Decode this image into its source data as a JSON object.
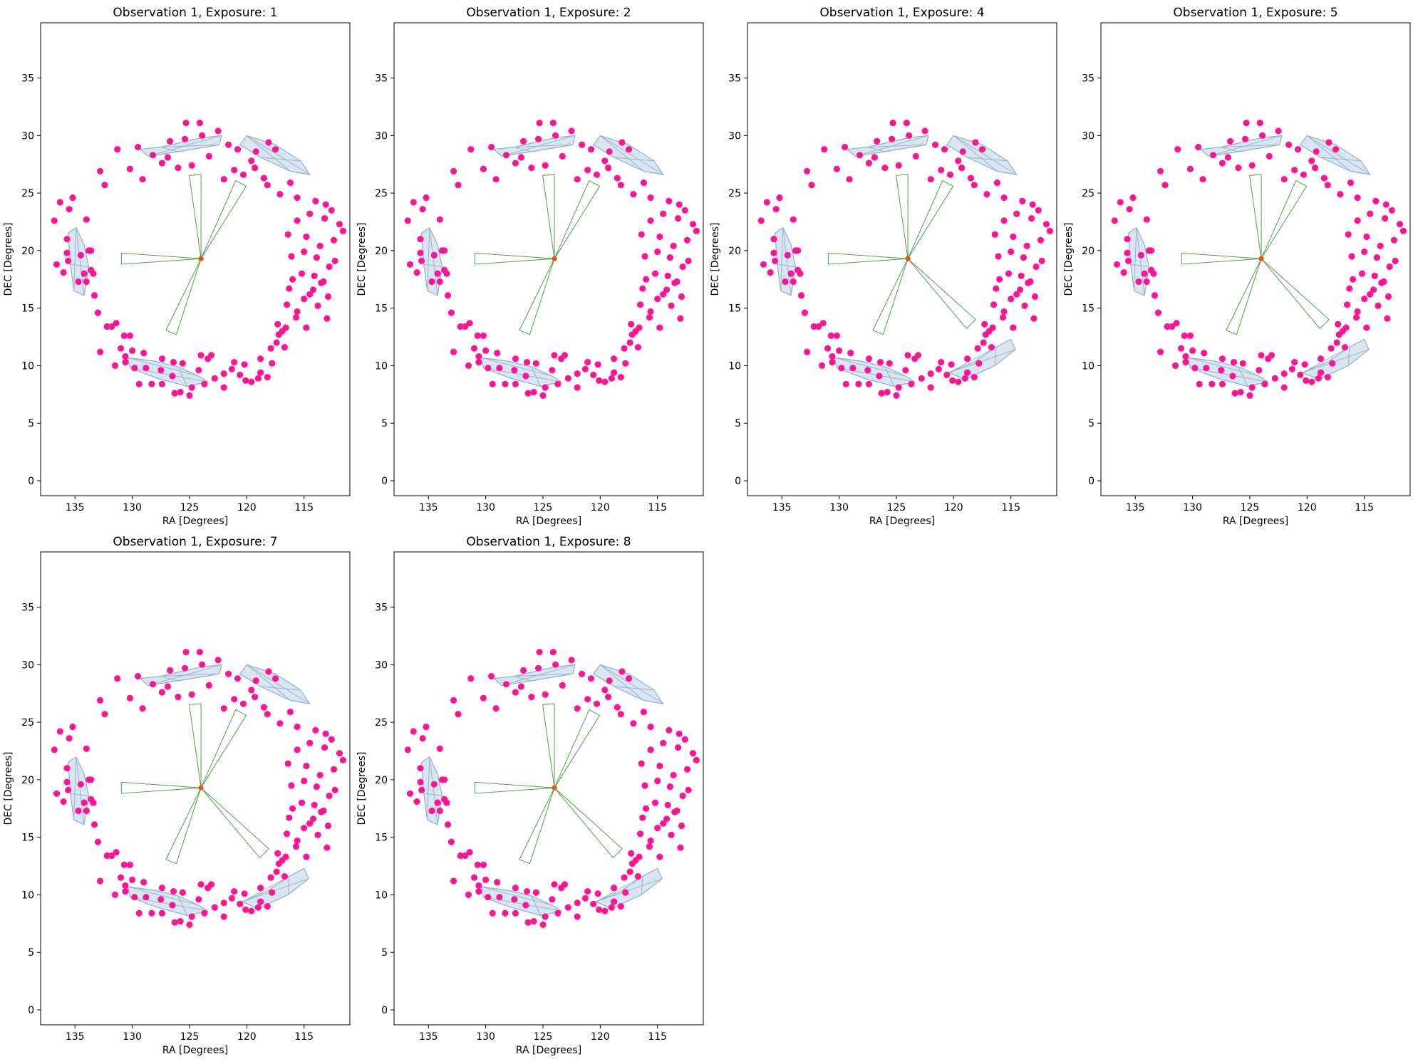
{
  "chart_data": [
    {
      "type": "scatter",
      "title": "Observation 1, Exposure: 1",
      "xlabel": "RA [Degrees]",
      "ylabel": "DEC [Degrees]",
      "xlim": [
        138,
        111
      ],
      "ylim": [
        -1.3,
        39.8
      ],
      "x_ticks": [
        135,
        130,
        125,
        120,
        115
      ],
      "y_ticks": [
        0,
        5,
        10,
        15,
        20,
        25,
        30,
        35
      ],
      "center": [
        124,
        19.3
      ],
      "footprint_angles": [
        94,
        62,
        180,
        248
      ],
      "extra_blob": false
    },
    {
      "type": "scatter",
      "title": "Observation 1, Exposure: 2",
      "xlabel": "RA [Degrees]",
      "ylabel": "DEC [Degrees]",
      "xlim": [
        138,
        111
      ],
      "ylim": [
        -1.3,
        39.8
      ],
      "x_ticks": [
        135,
        130,
        125,
        120,
        115
      ],
      "y_ticks": [
        0,
        5,
        10,
        15,
        20,
        25,
        30,
        35
      ],
      "center": [
        124,
        19.3
      ],
      "footprint_angles": [
        94,
        62,
        180,
        248
      ],
      "extra_blob": false
    },
    {
      "type": "scatter",
      "title": "Observation 1, Exposure: 4",
      "xlabel": "RA [Degrees]",
      "ylabel": "DEC [Degrees]",
      "xlim": [
        138,
        111
      ],
      "ylim": [
        -1.3,
        39.8
      ],
      "x_ticks": [
        135,
        130,
        125,
        120,
        115
      ],
      "y_ticks": [
        0,
        5,
        10,
        15,
        20,
        25,
        30,
        35
      ],
      "center": [
        124,
        19.3
      ],
      "footprint_angles": [
        94,
        62,
        180,
        248,
        314
      ],
      "extra_blob": true
    },
    {
      "type": "scatter",
      "title": "Observation 1, Exposure: 5",
      "xlabel": "RA [Degrees]",
      "ylabel": "DEC [Degrees]",
      "xlim": [
        138,
        111
      ],
      "ylim": [
        -1.3,
        39.8
      ],
      "x_ticks": [
        135,
        130,
        125,
        120,
        115
      ],
      "y_ticks": [
        0,
        5,
        10,
        15,
        20,
        25,
        30,
        35
      ],
      "center": [
        124,
        19.3
      ],
      "footprint_angles": [
        94,
        62,
        180,
        248,
        314
      ],
      "extra_blob": true
    },
    {
      "type": "scatter",
      "title": "Observation 1, Exposure: 7",
      "xlabel": "RA [Degrees]",
      "ylabel": "DEC [Degrees]",
      "xlim": [
        138,
        111
      ],
      "ylim": [
        -1.3,
        39.8
      ],
      "x_ticks": [
        135,
        130,
        125,
        120,
        115
      ],
      "y_ticks": [
        0,
        5,
        10,
        15,
        20,
        25,
        30,
        35
      ],
      "center": [
        124,
        19.3
      ],
      "footprint_angles": [
        94,
        62,
        180,
        248,
        314
      ],
      "extra_blob": true
    },
    {
      "type": "scatter",
      "title": "Observation 1, Exposure: 8",
      "xlabel": "RA [Degrees]",
      "ylabel": "DEC [Degrees]",
      "xlim": [
        138,
        111
      ],
      "ylim": [
        -1.3,
        39.8
      ],
      "x_ticks": [
        135,
        130,
        125,
        120,
        115
      ],
      "y_ticks": [
        0,
        5,
        10,
        15,
        20,
        25,
        30,
        35
      ],
      "center": [
        124,
        19.3
      ],
      "footprint_angles": [
        94,
        62,
        180,
        248,
        314
      ],
      "extra_blob": true
    }
  ],
  "points": [
    [
      136.8,
      22.6
    ],
    [
      136.3,
      24.2
    ],
    [
      135.2,
      24.6
    ],
    [
      136.6,
      18.8
    ],
    [
      135.6,
      19.1
    ],
    [
      134.2,
      18.0
    ],
    [
      134.5,
      19.6
    ],
    [
      133.8,
      20.0
    ],
    [
      134.0,
      17.3
    ],
    [
      133.3,
      16.1
    ],
    [
      133.0,
      14.6
    ],
    [
      132.2,
      13.4
    ],
    [
      132.8,
      11.2
    ],
    [
      131.0,
      11.5
    ],
    [
      130.2,
      12.6
    ],
    [
      130.6,
      10.3
    ],
    [
      129.8,
      9.8
    ],
    [
      128.3,
      8.4
    ],
    [
      127.5,
      9.6
    ],
    [
      126.5,
      9.1
    ],
    [
      125.8,
      7.7
    ],
    [
      124.8,
      8.1
    ],
    [
      124.2,
      9.6
    ],
    [
      123.4,
      10.6
    ],
    [
      122.8,
      8.9
    ],
    [
      121.3,
      9.7
    ],
    [
      120.2,
      10.1
    ],
    [
      118.8,
      10.6
    ],
    [
      117.9,
      11.5
    ],
    [
      117.2,
      12.7
    ],
    [
      116.6,
      13.3
    ],
    [
      115.7,
      14.2
    ],
    [
      115.0,
      15.8
    ],
    [
      114.2,
      16.6
    ],
    [
      113.5,
      17.2
    ],
    [
      112.8,
      18.6
    ],
    [
      113.6,
      20.4
    ],
    [
      112.4,
      20.9
    ],
    [
      111.6,
      21.7
    ],
    [
      113.2,
      22.8
    ],
    [
      114.5,
      23.2
    ],
    [
      115.6,
      22.6
    ],
    [
      116.4,
      21.4
    ],
    [
      117.1,
      24.9
    ],
    [
      118.5,
      26.3
    ],
    [
      119.6,
      27.8
    ],
    [
      120.8,
      28.8
    ],
    [
      121.6,
      29.2
    ],
    [
      122.5,
      30.4
    ],
    [
      124.1,
      31.1
    ],
    [
      125.4,
      29.7
    ],
    [
      126.7,
      29.5
    ],
    [
      128.2,
      28.3
    ],
    [
      129.5,
      29.0
    ],
    [
      130.2,
      27.1
    ],
    [
      131.3,
      28.8
    ],
    [
      129.1,
      26.2
    ],
    [
      126.9,
      28.1
    ],
    [
      124.8,
      27.4
    ],
    [
      123.3,
      28.2
    ],
    [
      132.8,
      26.9
    ],
    [
      132.4,
      25.7
    ],
    [
      127.4,
      27.6
    ],
    [
      126.0,
      27.2
    ],
    [
      122.0,
      26.2
    ],
    [
      121.1,
      27.0
    ],
    [
      118.1,
      29.4
    ],
    [
      117.5,
      28.8
    ],
    [
      116.2,
      25.9
    ],
    [
      115.6,
      24.6
    ],
    [
      114.0,
      24.3
    ],
    [
      113.1,
      24.0
    ],
    [
      112.6,
      23.5
    ],
    [
      111.9,
      22.3
    ],
    [
      114.8,
      21.2
    ],
    [
      116.1,
      19.5
    ],
    [
      113.9,
      19.4
    ],
    [
      115.2,
      18.0
    ],
    [
      114.1,
      17.8
    ],
    [
      116.3,
      16.7
    ],
    [
      112.9,
      16.0
    ],
    [
      113.8,
      15.2
    ],
    [
      115.6,
      14.7
    ],
    [
      113.0,
      14.1
    ],
    [
      114.8,
      13.3
    ],
    [
      116.9,
      13.0
    ],
    [
      117.4,
      12.0
    ],
    [
      117.8,
      10.2
    ],
    [
      118.8,
      9.4
    ],
    [
      119.6,
      8.6
    ],
    [
      120.6,
      9.2
    ],
    [
      122.0,
      9.3
    ],
    [
      123.1,
      10.9
    ],
    [
      124.0,
      10.9
    ],
    [
      125.6,
      10.2
    ],
    [
      126.4,
      10.3
    ],
    [
      127.4,
      10.6
    ],
    [
      128.8,
      9.8
    ],
    [
      129.4,
      8.4
    ],
    [
      130.6,
      10.8
    ],
    [
      131.5,
      10.0
    ],
    [
      130.7,
      12.6
    ],
    [
      125.0,
      7.4
    ],
    [
      126.3,
      7.6
    ],
    [
      123.7,
      8.4
    ],
    [
      122.0,
      8.1
    ],
    [
      127.4,
      8.4
    ],
    [
      135.7,
      21.0
    ],
    [
      135.5,
      23.6
    ],
    [
      134.0,
      22.7
    ],
    [
      133.6,
      20.0
    ],
    [
      133.4,
      18.0
    ],
    [
      134.7,
      17.3
    ],
    [
      131.8,
      13.4
    ],
    [
      130.0,
      11.3
    ],
    [
      129.0,
      11.1
    ],
    [
      131.4,
      13.7
    ],
    [
      133.6,
      18.3
    ],
    [
      135.7,
      19.8
    ],
    [
      136.0,
      18.1
    ],
    [
      118.2,
      25.7
    ],
    [
      119.3,
      27.2
    ],
    [
      120.3,
      26.6
    ],
    [
      119.2,
      28.6
    ],
    [
      123.9,
      30.0
    ],
    [
      125.3,
      31.1
    ],
    [
      115.0,
      19.9
    ],
    [
      112.3,
      19.1
    ],
    [
      114.5,
      16.2
    ],
    [
      113.3,
      17.3
    ],
    [
      117.3,
      13.6
    ],
    [
      116.7,
      11.6
    ],
    [
      119.0,
      8.9
    ],
    [
      120.1,
      8.7
    ],
    [
      118.2,
      9.0
    ],
    [
      121.1,
      10.3
    ],
    [
      116.0,
      17.5
    ],
    [
      116.5,
      15.3
    ]
  ],
  "blobs": [
    [
      [
        127.5,
        29.0
      ],
      [
        124.0,
        29.8
      ],
      [
        122.2,
        30.0
      ],
      [
        122.4,
        29.2
      ],
      [
        126.0,
        28.6
      ],
      [
        128.6,
        28.2
      ],
      [
        129.3,
        28.8
      ]
    ],
    [
      [
        120.0,
        30.0
      ],
      [
        117.5,
        29.2
      ],
      [
        115.3,
        27.8
      ],
      [
        114.5,
        26.6
      ],
      [
        116.2,
        26.9
      ],
      [
        118.8,
        28.1
      ],
      [
        120.6,
        29.2
      ]
    ],
    [
      [
        134.9,
        22.0
      ],
      [
        134.2,
        20.5
      ],
      [
        133.8,
        18.6
      ],
      [
        134.2,
        16.1
      ],
      [
        135.1,
        16.5
      ],
      [
        135.4,
        18.8
      ],
      [
        135.6,
        21.5
      ]
    ],
    [
      [
        130.4,
        10.7
      ],
      [
        128.1,
        10.4
      ],
      [
        126.0,
        9.9
      ],
      [
        124.2,
        9.1
      ],
      [
        123.4,
        8.6
      ],
      [
        125.2,
        8.2
      ],
      [
        127.8,
        8.9
      ],
      [
        130.2,
        9.8
      ]
    ],
    [
      [
        120.4,
        9.4
      ],
      [
        118.1,
        10.4
      ],
      [
        116.3,
        11.6
      ],
      [
        115.0,
        12.3
      ],
      [
        114.6,
        11.4
      ],
      [
        116.4,
        10.0
      ],
      [
        119.0,
        8.8
      ]
    ]
  ]
}
